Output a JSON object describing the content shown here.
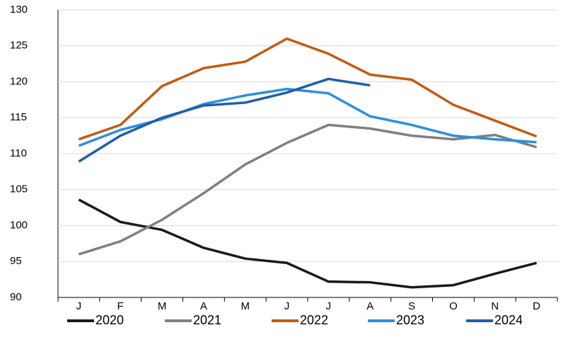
{
  "chart_data": {
    "type": "line",
    "categories": [
      "J",
      "F",
      "M",
      "A",
      "M",
      "J",
      "J",
      "A",
      "S",
      "O",
      "N",
      "D"
    ],
    "series": [
      {
        "name": "2020",
        "color": "#1a1a1a",
        "values": [
          103.6,
          100.5,
          99.4,
          96.9,
          95.4,
          94.8,
          92.2,
          92.1,
          91.4,
          91.7,
          93.3,
          94.8
        ]
      },
      {
        "name": "2021",
        "color": "#808080",
        "values": [
          96.0,
          97.8,
          100.8,
          104.5,
          108.5,
          111.5,
          114.0,
          113.5,
          112.5,
          112.0,
          112.6,
          110.9
        ]
      },
      {
        "name": "2022",
        "color": "#c55a11",
        "values": [
          112.0,
          114.0,
          119.4,
          121.9,
          122.8,
          126.0,
          123.9,
          121.0,
          120.3,
          116.8,
          114.6,
          112.4
        ]
      },
      {
        "name": "2023",
        "color": "#2e8ee0",
        "values": [
          111.1,
          113.3,
          114.8,
          116.9,
          118.1,
          119.0,
          118.4,
          115.2,
          114.0,
          112.5,
          112.0,
          111.6
        ]
      },
      {
        "name": "2024",
        "color": "#1f5fa8",
        "values": [
          108.9,
          112.5,
          115.0,
          116.7,
          117.1,
          118.5,
          120.4,
          119.5,
          null,
          null,
          null,
          null
        ]
      }
    ],
    "ylim": [
      90,
      130
    ],
    "yticks": [
      90,
      95,
      100,
      105,
      110,
      115,
      120,
      125,
      130
    ],
    "grid": true,
    "legend": "bottom"
  }
}
